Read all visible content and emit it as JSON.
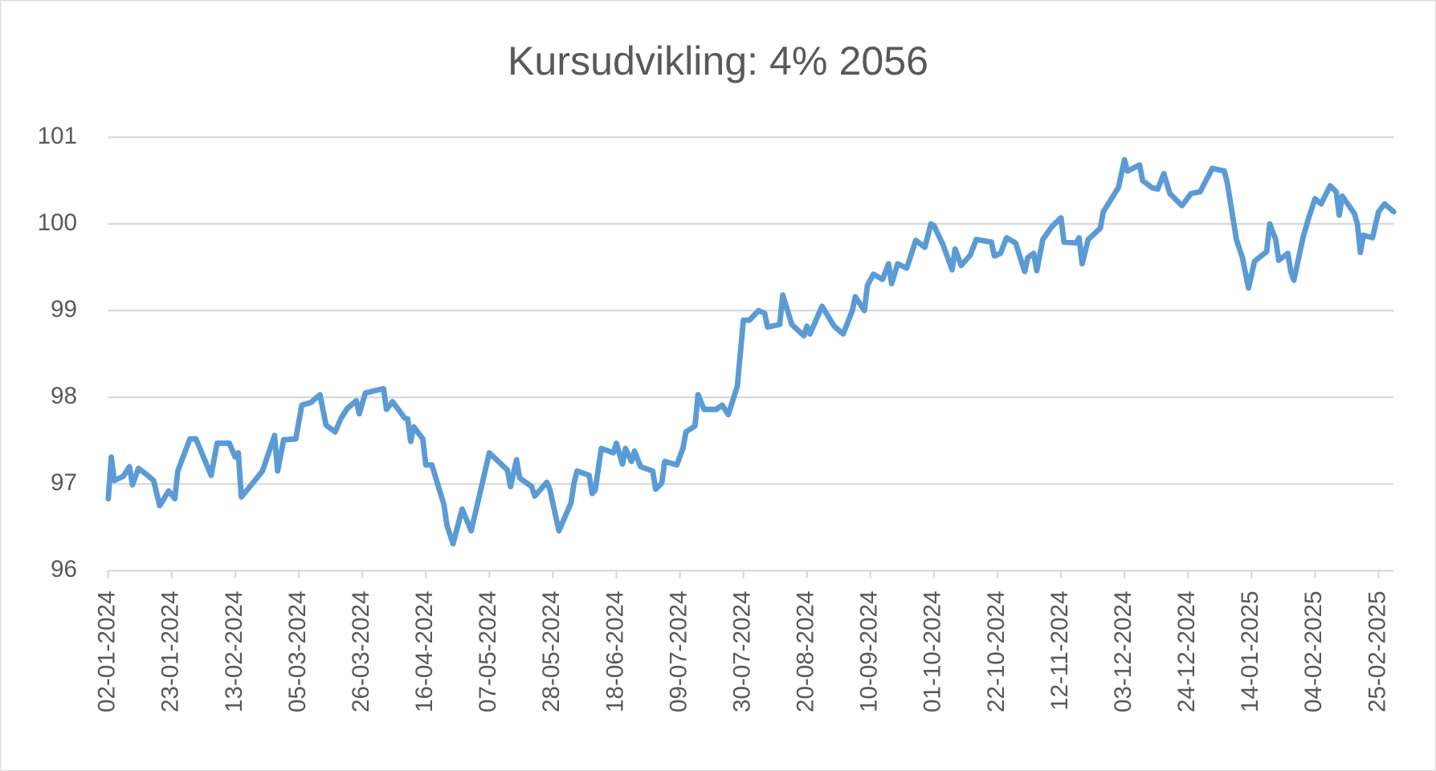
{
  "chart_data": {
    "type": "line",
    "title": "Kursudvikling: 4% 2056",
    "x": [
      "02-01-2024",
      "03-01-2024",
      "04-01-2024",
      "07-01-2024",
      "09-01-2024",
      "10-01-2024",
      "12-01-2024",
      "15-01-2024",
      "17-01-2024",
      "19-01-2024",
      "22-01-2024",
      "24-01-2024",
      "25-01-2024",
      "29-01-2024",
      "31-01-2024",
      "05-02-2024",
      "07-02-2024",
      "11-02-2024",
      "13-02-2024",
      "14-02-2024",
      "15-02-2024",
      "19-02-2024",
      "22-02-2024",
      "26-02-2024",
      "27-02-2024",
      "29-02-2024",
      "04-03-2024",
      "06-03-2024",
      "09-03-2024",
      "12-03-2024",
      "14-03-2024",
      "17-03-2024",
      "19-03-2024",
      "21-03-2024",
      "24-03-2024",
      "25-03-2024",
      "27-03-2024",
      "02-04-2024",
      "03-04-2024",
      "05-04-2024",
      "09-04-2024",
      "10-04-2024",
      "11-04-2024",
      "12-04-2024",
      "15-04-2024",
      "16-04-2024",
      "18-04-2024",
      "22-04-2024",
      "23-04-2024",
      "25-04-2024",
      "28-04-2024",
      "01-05-2024",
      "07-05-2024",
      "13-05-2024",
      "14-05-2024",
      "16-05-2024",
      "17-05-2024",
      "21-05-2024",
      "22-05-2024",
      "26-05-2024",
      "27-05-2024",
      "29-05-2024",
      "30-05-2024",
      "03-06-2024",
      "04-06-2024",
      "05-06-2024",
      "09-06-2024",
      "10-06-2024",
      "11-06-2024",
      "13-06-2024",
      "17-06-2024",
      "18-06-2024",
      "20-06-2024",
      "21-06-2024",
      "23-06-2024",
      "24-06-2024",
      "26-06-2024",
      "30-06-2024",
      "01-07-2024",
      "03-07-2024",
      "04-07-2024",
      "08-07-2024",
      "10-07-2024",
      "11-07-2024",
      "14-07-2024",
      "15-07-2024",
      "17-07-2024",
      "21-07-2024",
      "23-07-2024",
      "25-07-2024",
      "28-07-2024",
      "30-07-2024",
      "01-08-2024",
      "04-08-2024",
      "06-08-2024",
      "07-08-2024",
      "11-08-2024",
      "12-08-2024",
      "15-08-2024",
      "19-08-2024",
      "20-08-2024",
      "21-08-2024",
      "25-08-2024",
      "29-08-2024",
      "01-09-2024",
      "04-09-2024",
      "05-09-2024",
      "08-09-2024",
      "09-09-2024",
      "11-09-2024",
      "14-09-2024",
      "16-09-2024",
      "17-09-2024",
      "19-09-2024",
      "22-09-2024",
      "25-09-2024",
      "28-09-2024",
      "30-09-2024",
      "01-10-2024",
      "04-10-2024",
      "07-10-2024",
      "08-10-2024",
      "10-10-2024",
      "13-10-2024",
      "15-10-2024",
      "20-10-2024",
      "21-10-2024",
      "23-10-2024",
      "25-10-2024",
      "28-10-2024",
      "31-10-2024",
      "01-11-2024",
      "03-11-2024",
      "04-11-2024",
      "06-11-2024",
      "09-11-2024",
      "12-11-2024",
      "13-11-2024",
      "17-11-2024",
      "18-11-2024",
      "19-11-2024",
      "21-11-2024",
      "25-11-2024",
      "26-11-2024",
      "01-12-2024",
      "03-12-2024",
      "04-12-2024",
      "08-12-2024",
      "09-12-2024",
      "12-12-2024",
      "14-12-2024",
      "16-12-2024",
      "18-12-2024",
      "22-12-2024",
      "25-12-2024",
      "28-12-2024",
      "01-01-2025",
      "05-01-2025",
      "06-01-2025",
      "09-01-2025",
      "11-01-2025",
      "13-01-2025",
      "15-01-2025",
      "19-01-2025",
      "20-01-2025",
      "22-01-2025",
      "23-01-2025",
      "26-01-2025",
      "27-01-2025",
      "28-01-2025",
      "31-01-2025",
      "02-02-2025",
      "04-02-2025",
      "06-02-2025",
      "09-02-2025",
      "11-02-2025",
      "12-02-2025",
      "13-02-2025",
      "17-02-2025",
      "18-02-2025",
      "19-02-2025",
      "20-02-2025",
      "23-02-2025",
      "25-02-2025",
      "27-02-2025",
      "02-03-2025"
    ],
    "values": [
      96.83,
      97.31,
      97.04,
      97.09,
      97.2,
      96.99,
      97.18,
      97.1,
      97.04,
      96.75,
      96.92,
      96.83,
      97.15,
      97.52,
      97.52,
      97.1,
      97.47,
      97.47,
      97.31,
      97.36,
      96.85,
      97.02,
      97.15,
      97.56,
      97.15,
      97.51,
      97.52,
      97.91,
      97.94,
      98.03,
      97.68,
      97.6,
      97.76,
      97.87,
      97.96,
      97.81,
      98.05,
      98.1,
      97.86,
      97.95,
      97.76,
      97.75,
      97.49,
      97.66,
      97.52,
      97.22,
      97.22,
      96.76,
      96.52,
      96.31,
      96.71,
      96.46,
      97.36,
      97.16,
      96.97,
      97.28,
      97.07,
      96.97,
      96.86,
      97.02,
      96.94,
      96.62,
      96.46,
      96.78,
      97.01,
      97.15,
      97.1,
      96.89,
      96.93,
      97.41,
      97.36,
      97.47,
      97.23,
      97.41,
      97.26,
      97.38,
      97.2,
      97.15,
      96.94,
      97.01,
      97.26,
      97.22,
      97.41,
      97.6,
      97.67,
      98.03,
      97.86,
      97.86,
      97.91,
      97.8,
      98.13,
      98.89,
      98.89,
      99.0,
      98.97,
      98.81,
      98.84,
      99.18,
      98.84,
      98.71,
      98.82,
      98.73,
      99.05,
      98.82,
      98.73,
      99.0,
      99.16,
      99.0,
      99.29,
      99.42,
      99.36,
      99.54,
      99.31,
      99.54,
      99.49,
      99.81,
      99.73,
      100.0,
      99.98,
      99.76,
      99.47,
      99.71,
      99.52,
      99.64,
      99.82,
      99.79,
      99.63,
      99.66,
      99.84,
      99.78,
      99.45,
      99.61,
      99.66,
      99.46,
      99.82,
      99.97,
      100.07,
      99.79,
      99.78,
      99.84,
      99.54,
      99.82,
      99.95,
      100.14,
      100.42,
      100.74,
      100.61,
      100.68,
      100.5,
      100.42,
      100.4,
      100.58,
      100.35,
      100.21,
      100.35,
      100.37,
      100.64,
      100.61,
      100.47,
      99.82,
      99.61,
      99.26,
      99.57,
      99.68,
      100.0,
      99.82,
      99.58,
      99.66,
      99.45,
      99.35,
      99.84,
      100.08,
      100.29,
      100.23,
      100.44,
      100.37,
      100.1,
      100.32,
      100.12,
      100.0,
      99.67,
      99.87,
      99.84,
      100.14,
      100.23,
      100.14
    ],
    "color": "#5b9bd5",
    "xlim": [
      "02-01-2024",
      "02-03-2025"
    ],
    "xticks": [
      "02-01-2024",
      "23-01-2024",
      "13-02-2024",
      "05-03-2024",
      "26-03-2024",
      "16-04-2024",
      "07-05-2024",
      "28-05-2024",
      "18-06-2024",
      "09-07-2024",
      "30-07-2024",
      "20-08-2024",
      "10-09-2024",
      "01-10-2024",
      "22-10-2024",
      "12-11-2024",
      "03-12-2024",
      "24-12-2024",
      "14-01-2025",
      "04-02-2025",
      "25-02-2025"
    ],
    "ylim": [
      96,
      101
    ],
    "yticks": [
      96,
      97,
      98,
      99,
      100,
      101
    ],
    "grid": true
  }
}
